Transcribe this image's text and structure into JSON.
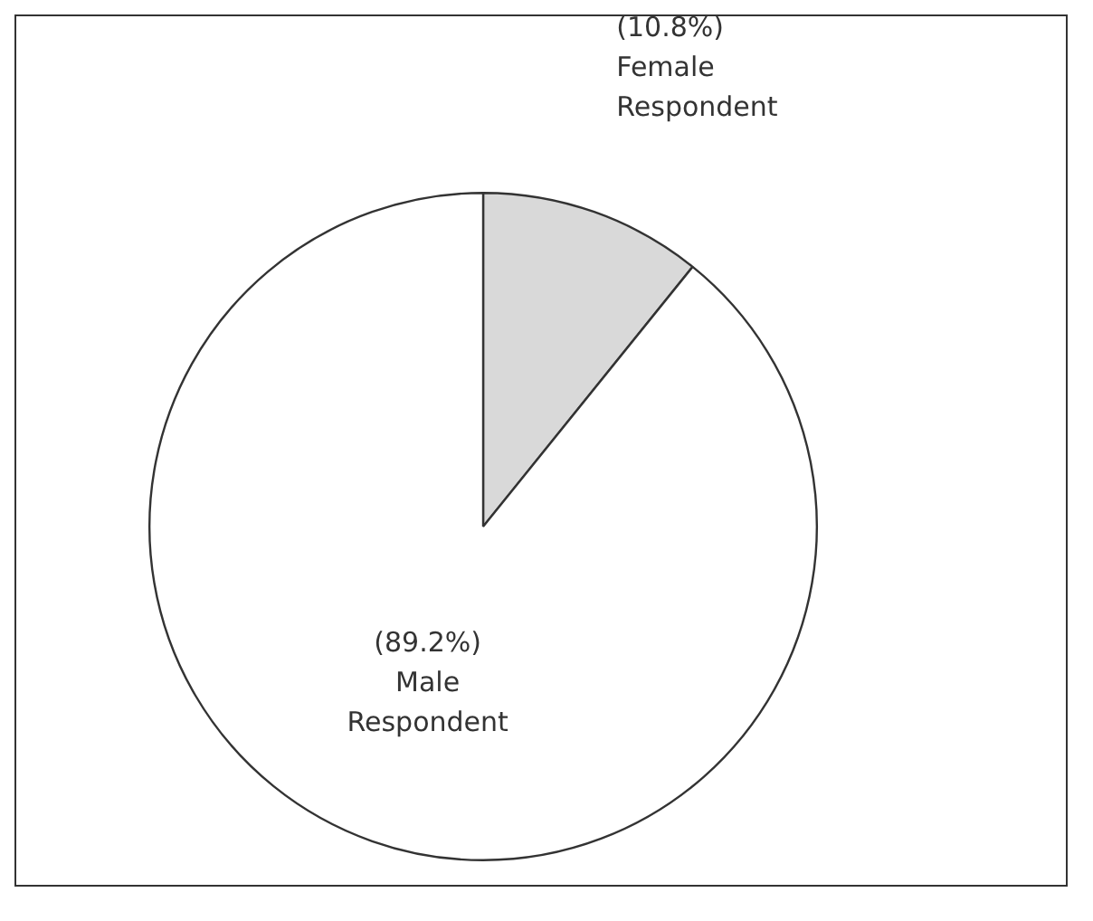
{
  "chart_data": {
    "type": "pie",
    "categories": [
      "Female Respondent",
      "Male Respondent"
    ],
    "values": [
      10.8,
      89.2
    ],
    "colors": [
      "#d9d9d9",
      "#ffffff"
    ],
    "value_labels": [
      "(10.8%)",
      "(89.2%)"
    ],
    "legend": false
  }
}
